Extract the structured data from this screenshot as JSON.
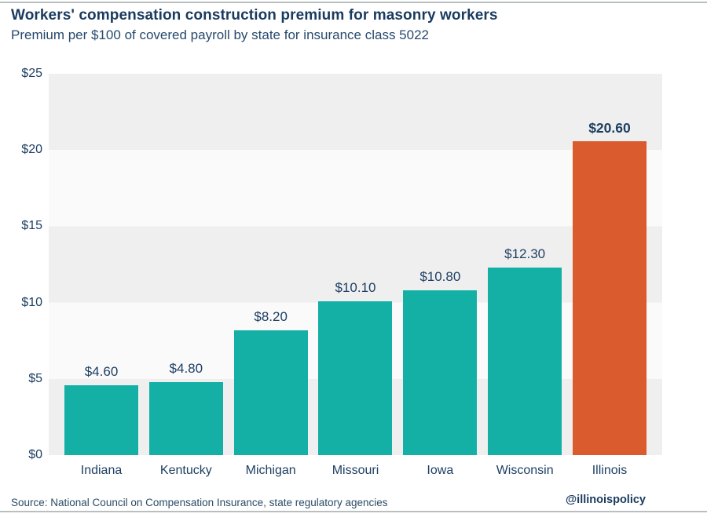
{
  "header": {
    "title": "Workers' compensation construction premium for masonry workers",
    "subtitle": "Premium per $100 of covered payroll by state for insurance class 5022"
  },
  "footer": {
    "source": "Source: National Council on Compensation Insurance, state regulatory agencies",
    "handle": "@illinoispolicy"
  },
  "chart_data": {
    "type": "bar",
    "title": "Workers' compensation construction premium for masonry workers",
    "subtitle": "Premium per $100 of covered payroll by state for insurance class 5022",
    "categories": [
      "Indiana",
      "Kentucky",
      "Michigan",
      "Missouri",
      "Iowa",
      "Wisconsin",
      "Illinois"
    ],
    "values": [
      4.6,
      4.8,
      8.2,
      10.1,
      10.8,
      12.3,
      20.6
    ],
    "value_labels": [
      "$4.60",
      "$4.80",
      "$8.20",
      "$10.10",
      "$10.80",
      "$12.30",
      "$20.60"
    ],
    "y_ticks": [
      "$25",
      "$20",
      "$15",
      "$10",
      "$5",
      "$0"
    ],
    "ylim": [
      0,
      25
    ],
    "grid": "horizontal-bands",
    "legend": "none",
    "highlight_index": 6,
    "colors": {
      "bar_default": "#14b0a6",
      "bar_highlight": "#d95b2e",
      "band_dark": "#efefef",
      "band_light": "#fafafa",
      "text_navy": "#1e3f63",
      "rule_gray": "#b9bfbf"
    }
  }
}
